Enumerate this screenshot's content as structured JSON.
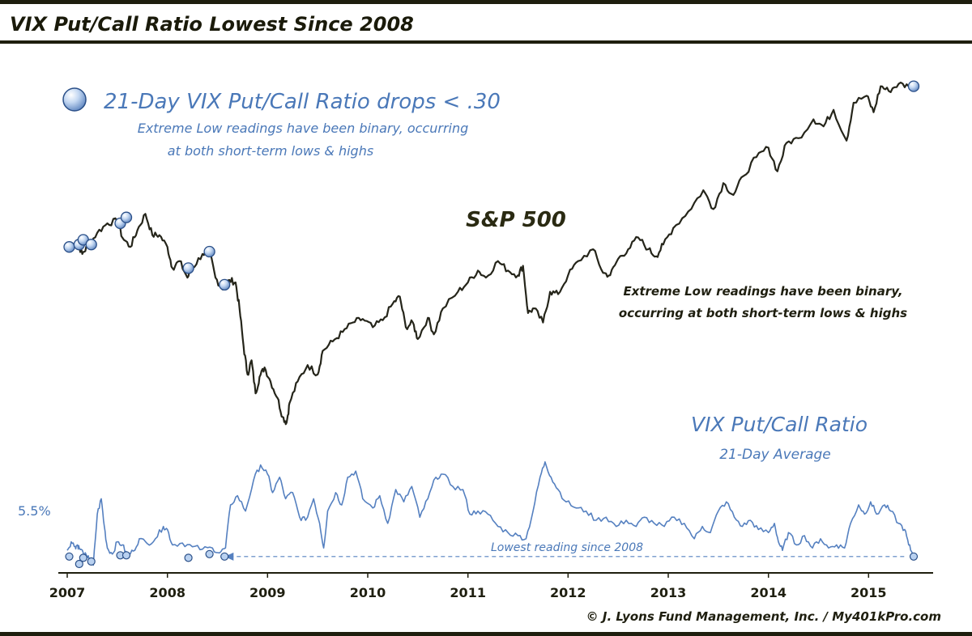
{
  "header": {
    "title": "VIX Put/Call Ratio Lowest Since 2008"
  },
  "legend": {
    "marker_label": "21-Day VIX Put/Call Ratio drops < .30",
    "note_line1": "Extreme Low readings have been binary, occurring",
    "note_line2": "at both short-term lows & highs"
  },
  "spx_annotation": {
    "line1": "Extreme Low readings have been binary,",
    "line2": "occurring at both short-term lows & highs"
  },
  "footer": {
    "credit": "© J. Lyons Fund Management, Inc. / My401kPro.com"
  },
  "colors": {
    "frame": "#1e1e0e",
    "spx_line": "#25251a",
    "ratio_line": "#5580c0",
    "label_blue": "#4a78b8",
    "title_text": "#1a1a0a",
    "marker_fill": "#b9d1f0",
    "marker_stroke": "#2a4f88",
    "axis_text": "#1f1f10"
  },
  "chart_data": {
    "type": "line",
    "title": "VIX Put/Call Ratio Lowest Since 2008",
    "x_tick_labels": [
      "2007",
      "2008",
      "2009",
      "2010",
      "2011",
      "2012",
      "2013",
      "2014",
      "2015"
    ],
    "x_range": [
      2007.0,
      2015.45
    ],
    "upper_panel": {
      "series_name": "S&P 500",
      "unit": "index level",
      "ylim": [
        650,
        2150
      ],
      "points": [
        [
          2007.0,
          1420
        ],
        [
          2007.1,
          1440
        ],
        [
          2007.15,
          1390
        ],
        [
          2007.2,
          1420
        ],
        [
          2007.3,
          1480
        ],
        [
          2007.4,
          1520
        ],
        [
          2007.5,
          1530
        ],
        [
          2007.55,
          1460
        ],
        [
          2007.63,
          1420
        ],
        [
          2007.7,
          1490
        ],
        [
          2007.78,
          1560
        ],
        [
          2007.85,
          1470
        ],
        [
          2007.92,
          1470
        ],
        [
          2008.0,
          1420
        ],
        [
          2008.05,
          1330
        ],
        [
          2008.12,
          1360
        ],
        [
          2008.2,
          1290
        ],
        [
          2008.25,
          1330
        ],
        [
          2008.35,
          1390
        ],
        [
          2008.42,
          1400
        ],
        [
          2008.48,
          1290
        ],
        [
          2008.55,
          1240
        ],
        [
          2008.62,
          1280
        ],
        [
          2008.68,
          1270
        ],
        [
          2008.72,
          1160
        ],
        [
          2008.76,
          1000
        ],
        [
          2008.8,
          880
        ],
        [
          2008.84,
          940
        ],
        [
          2008.88,
          800
        ],
        [
          2008.92,
          870
        ],
        [
          2008.97,
          910
        ],
        [
          2009.03,
          850
        ],
        [
          2009.1,
          780
        ],
        [
          2009.15,
          700
        ],
        [
          2009.19,
          676
        ],
        [
          2009.22,
          760
        ],
        [
          2009.3,
          850
        ],
        [
          2009.4,
          920
        ],
        [
          2009.5,
          880
        ],
        [
          2009.55,
          980
        ],
        [
          2009.65,
          1020
        ],
        [
          2009.75,
          1060
        ],
        [
          2009.85,
          1100
        ],
        [
          2009.95,
          1115
        ],
        [
          2010.05,
          1080
        ],
        [
          2010.15,
          1110
        ],
        [
          2010.25,
          1180
        ],
        [
          2010.32,
          1210
        ],
        [
          2010.38,
          1080
        ],
        [
          2010.45,
          1100
        ],
        [
          2010.5,
          1030
        ],
        [
          2010.6,
          1120
        ],
        [
          2010.66,
          1050
        ],
        [
          2010.75,
          1160
        ],
        [
          2010.9,
          1230
        ],
        [
          2011.0,
          1270
        ],
        [
          2011.1,
          1320
        ],
        [
          2011.18,
          1290
        ],
        [
          2011.3,
          1360
        ],
        [
          2011.4,
          1320
        ],
        [
          2011.5,
          1300
        ],
        [
          2011.55,
          1340
        ],
        [
          2011.6,
          1140
        ],
        [
          2011.66,
          1160
        ],
        [
          2011.75,
          1100
        ],
        [
          2011.82,
          1230
        ],
        [
          2011.9,
          1220
        ],
        [
          2012.0,
          1300
        ],
        [
          2012.1,
          1360
        ],
        [
          2012.25,
          1410
        ],
        [
          2012.35,
          1310
        ],
        [
          2012.42,
          1300
        ],
        [
          2012.5,
          1370
        ],
        [
          2012.6,
          1410
        ],
        [
          2012.7,
          1460
        ],
        [
          2012.8,
          1410
        ],
        [
          2012.88,
          1380
        ],
        [
          2012.95,
          1430
        ],
        [
          2013.05,
          1500
        ],
        [
          2013.2,
          1570
        ],
        [
          2013.35,
          1660
        ],
        [
          2013.45,
          1580
        ],
        [
          2013.55,
          1690
        ],
        [
          2013.65,
          1640
        ],
        [
          2013.75,
          1720
        ],
        [
          2013.88,
          1800
        ],
        [
          2014.0,
          1840
        ],
        [
          2014.09,
          1740
        ],
        [
          2014.18,
          1860
        ],
        [
          2014.3,
          1880
        ],
        [
          2014.45,
          1960
        ],
        [
          2014.55,
          1930
        ],
        [
          2014.65,
          2000
        ],
        [
          2014.78,
          1870
        ],
        [
          2014.85,
          2030
        ],
        [
          2014.98,
          2060
        ],
        [
          2015.05,
          1990
        ],
        [
          2015.12,
          2100
        ],
        [
          2015.2,
          2080
        ],
        [
          2015.3,
          2110
        ],
        [
          2015.4,
          2100
        ],
        [
          2015.45,
          2100
        ]
      ],
      "signal_markers": [
        [
          2007.02,
          1420
        ],
        [
          2007.12,
          1430
        ],
        [
          2007.16,
          1450
        ],
        [
          2007.24,
          1430
        ],
        [
          2007.53,
          1520
        ],
        [
          2007.59,
          1545
        ],
        [
          2008.21,
          1330
        ],
        [
          2008.42,
          1400
        ],
        [
          2008.57,
          1260
        ],
        [
          2015.45,
          2100
        ]
      ]
    },
    "lower_panel": {
      "series_name": "VIX Put/Call Ratio",
      "subtitle": "21-Day Average",
      "ytick_label": "5.5%",
      "ytick_value": 5.5,
      "reference_label": "Lowest reading since 2008",
      "reference_value": 3.6,
      "ylim": [
        2.0,
        22.0
      ],
      "points": [
        [
          2007.0,
          4.6
        ],
        [
          2007.04,
          6.0
        ],
        [
          2007.08,
          5.2
        ],
        [
          2007.1,
          5.5
        ],
        [
          2007.12,
          5.0
        ],
        [
          2007.16,
          4.2
        ],
        [
          2007.2,
          3.4
        ],
        [
          2007.24,
          3.2
        ],
        [
          2007.26,
          2.2
        ],
        [
          2007.3,
          10.5
        ],
        [
          2007.34,
          13.0
        ],
        [
          2007.37,
          8.5
        ],
        [
          2007.4,
          5.0
        ],
        [
          2007.45,
          4.0
        ],
        [
          2007.5,
          6.0
        ],
        [
          2007.55,
          5.5
        ],
        [
          2007.6,
          3.8
        ],
        [
          2007.66,
          4.5
        ],
        [
          2007.72,
          6.5
        ],
        [
          2007.8,
          5.7
        ],
        [
          2007.88,
          6.5
        ],
        [
          2007.96,
          8.5
        ],
        [
          2008.0,
          8.0
        ],
        [
          2008.05,
          5.5
        ],
        [
          2008.15,
          5.8
        ],
        [
          2008.25,
          5.2
        ],
        [
          2008.35,
          4.8
        ],
        [
          2008.45,
          5.0
        ],
        [
          2008.52,
          4.2
        ],
        [
          2008.58,
          5.0
        ],
        [
          2008.63,
          12.0
        ],
        [
          2008.7,
          13.5
        ],
        [
          2008.78,
          11.0
        ],
        [
          2008.86,
          16.0
        ],
        [
          2008.93,
          18.5
        ],
        [
          2009.0,
          17.0
        ],
        [
          2009.05,
          14.0
        ],
        [
          2009.12,
          16.5
        ],
        [
          2009.18,
          13.0
        ],
        [
          2009.25,
          14.0
        ],
        [
          2009.32,
          10.0
        ],
        [
          2009.38,
          9.5
        ],
        [
          2009.46,
          13.0
        ],
        [
          2009.52,
          9.0
        ],
        [
          2009.56,
          5.0
        ],
        [
          2009.6,
          11.0
        ],
        [
          2009.68,
          14.0
        ],
        [
          2009.74,
          12.0
        ],
        [
          2009.8,
          16.5
        ],
        [
          2009.88,
          17.5
        ],
        [
          2009.95,
          13.0
        ],
        [
          2010.05,
          11.5
        ],
        [
          2010.12,
          13.5
        ],
        [
          2010.2,
          9.0
        ],
        [
          2010.28,
          14.5
        ],
        [
          2010.36,
          12.5
        ],
        [
          2010.44,
          15.0
        ],
        [
          2010.52,
          10.0
        ],
        [
          2010.6,
          13.0
        ],
        [
          2010.68,
          16.5
        ],
        [
          2010.75,
          17.0
        ],
        [
          2010.85,
          15.0
        ],
        [
          2010.95,
          14.5
        ],
        [
          2011.02,
          10.5
        ],
        [
          2011.1,
          11.0
        ],
        [
          2011.2,
          10.5
        ],
        [
          2011.3,
          8.5
        ],
        [
          2011.4,
          7.5
        ],
        [
          2011.5,
          7.0
        ],
        [
          2011.58,
          6.5
        ],
        [
          2011.65,
          11.0
        ],
        [
          2011.72,
          16.5
        ],
        [
          2011.77,
          19.0
        ],
        [
          2011.83,
          16.5
        ],
        [
          2011.9,
          14.5
        ],
        [
          2011.98,
          12.5
        ],
        [
          2012.08,
          11.5
        ],
        [
          2012.18,
          11.0
        ],
        [
          2012.28,
          9.5
        ],
        [
          2012.38,
          10.0
        ],
        [
          2012.48,
          8.5
        ],
        [
          2012.58,
          9.5
        ],
        [
          2012.68,
          8.5
        ],
        [
          2012.76,
          10.0
        ],
        [
          2012.86,
          9.0
        ],
        [
          2012.96,
          8.5
        ],
        [
          2013.06,
          10.0
        ],
        [
          2013.16,
          9.0
        ],
        [
          2013.26,
          6.5
        ],
        [
          2013.34,
          8.5
        ],
        [
          2013.42,
          7.5
        ],
        [
          2013.5,
          11.0
        ],
        [
          2013.58,
          12.5
        ],
        [
          2013.66,
          10.0
        ],
        [
          2013.74,
          8.5
        ],
        [
          2013.82,
          9.5
        ],
        [
          2013.9,
          8.0
        ],
        [
          2014.0,
          7.5
        ],
        [
          2014.06,
          9.0
        ],
        [
          2014.1,
          6.0
        ],
        [
          2014.14,
          4.6
        ],
        [
          2014.2,
          7.5
        ],
        [
          2014.28,
          5.5
        ],
        [
          2014.36,
          7.0
        ],
        [
          2014.44,
          5.0
        ],
        [
          2014.52,
          6.5
        ],
        [
          2014.6,
          5.0
        ],
        [
          2014.68,
          5.5
        ],
        [
          2014.76,
          5.0
        ],
        [
          2014.82,
          9.0
        ],
        [
          2014.9,
          12.0
        ],
        [
          2014.96,
          10.5
        ],
        [
          2015.02,
          12.5
        ],
        [
          2015.08,
          10.5
        ],
        [
          2015.16,
          12.0
        ],
        [
          2015.22,
          11.0
        ],
        [
          2015.3,
          9.0
        ],
        [
          2015.36,
          8.0
        ],
        [
          2015.4,
          5.5
        ],
        [
          2015.44,
          4.0
        ],
        [
          2015.45,
          3.6
        ]
      ],
      "signal_markers": [
        [
          2007.02,
          3.6
        ],
        [
          2007.12,
          2.4
        ],
        [
          2007.16,
          3.4
        ],
        [
          2007.24,
          2.8
        ],
        [
          2007.53,
          3.8
        ],
        [
          2007.59,
          3.8
        ],
        [
          2008.21,
          3.4
        ],
        [
          2008.42,
          4.0
        ],
        [
          2008.57,
          3.6
        ],
        [
          2015.45,
          3.6
        ]
      ]
    }
  }
}
